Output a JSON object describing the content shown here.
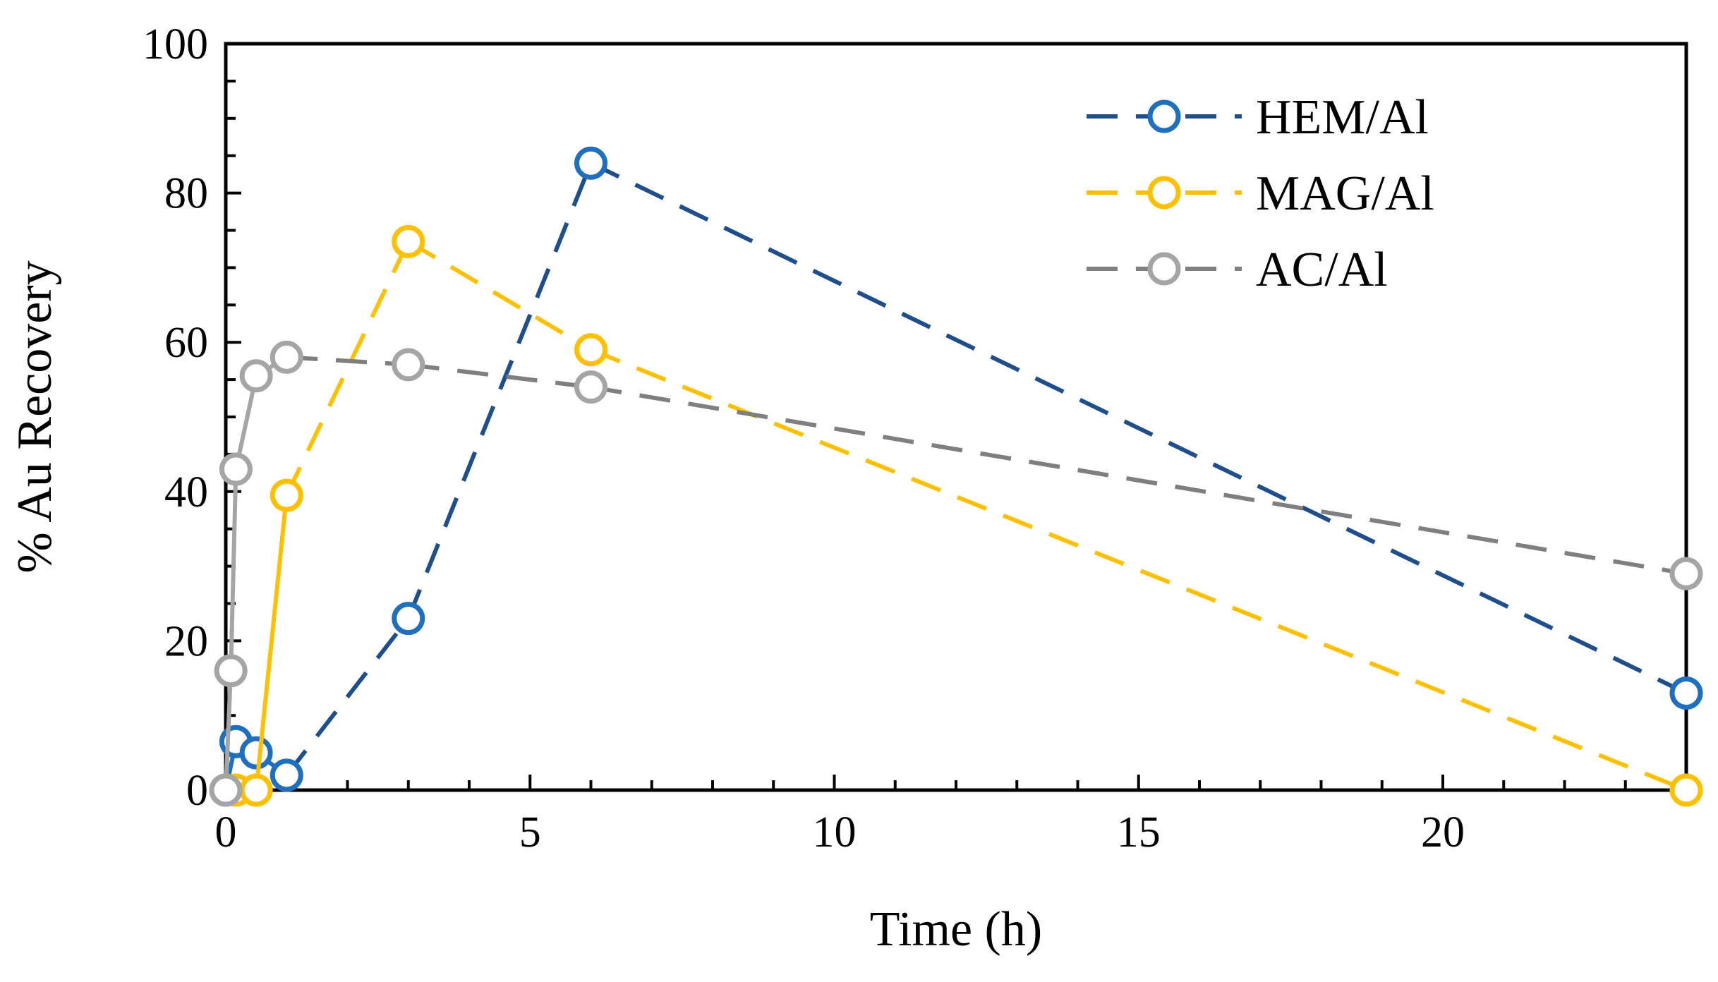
{
  "chart_data": {
    "type": "line",
    "title": "",
    "xlabel": "Time (h)",
    "ylabel": "% Au Recovery",
    "xlim": [
      0,
      24
    ],
    "ylim": [
      0,
      100
    ],
    "x_ticks": [
      0,
      5,
      10,
      15,
      20
    ],
    "y_ticks": [
      0,
      20,
      40,
      60,
      80,
      100
    ],
    "grid": false,
    "legend_position": "top-right",
    "series": [
      {
        "name": "HEM/Al",
        "color": "#1F6FBF",
        "dash_color": "#1F4E8C",
        "x": [
          0,
          0.167,
          0.5,
          1,
          3,
          6,
          24
        ],
        "y": [
          0,
          6.5,
          5,
          2,
          23,
          84,
          13
        ]
      },
      {
        "name": "MAG/Al",
        "color": "#FFC000",
        "dash_color": "#FFC000",
        "x": [
          0,
          0.167,
          0.5,
          1,
          3,
          6,
          24
        ],
        "y": [
          0,
          0,
          0,
          39.5,
          73.5,
          59,
          0
        ]
      },
      {
        "name": "AC/Al",
        "color": "#A5A5A5",
        "dash_color": "#7F7F7F",
        "x": [
          0,
          0.083,
          0.167,
          0.5,
          1,
          3,
          6,
          24
        ],
        "y": [
          0,
          16,
          43,
          55.5,
          58,
          57,
          54,
          29
        ]
      }
    ]
  }
}
